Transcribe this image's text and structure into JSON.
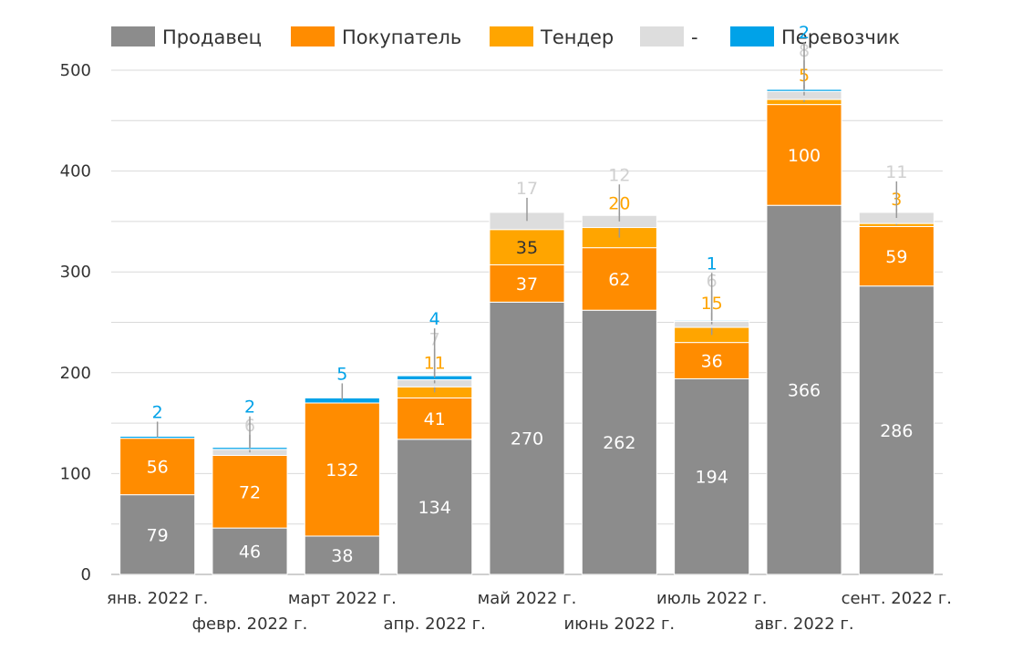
{
  "chart_data": {
    "type": "bar",
    "stacked": true,
    "categories": [
      "янв. 2022 г.",
      "февр. 2022 г.",
      "март 2022 г.",
      "апр. 2022 г.",
      "май 2022 г.",
      "июнь 2022 г.",
      "июль 2022 г.",
      "авг. 2022 г.",
      "сент. 2022 г."
    ],
    "series": [
      {
        "name": "Продавец",
        "color": "#8c8c8c",
        "label_color": "#ffffff",
        "values": [
          79,
          46,
          38,
          134,
          270,
          262,
          194,
          366,
          286
        ]
      },
      {
        "name": "Покупатель",
        "color": "#ff8c00",
        "label_color": "#ffffff",
        "values": [
          56,
          72,
          132,
          41,
          37,
          62,
          36,
          100,
          59
        ]
      },
      {
        "name": "Тендер",
        "color": "#ffa500",
        "label_color": "#ffa500",
        "values": [
          0,
          0,
          0,
          11,
          35,
          20,
          15,
          5,
          3
        ]
      },
      {
        "name": "-",
        "color": "#dddddd",
        "label_color": "#d0d0d0",
        "values": [
          0,
          6,
          0,
          7,
          17,
          12,
          6,
          8,
          11
        ]
      },
      {
        "name": "Перевозчик",
        "color": "#00a2e8",
        "label_color": "#00a2e8",
        "values": [
          2,
          2,
          5,
          4,
          0,
          0,
          1,
          2,
          0
        ]
      }
    ],
    "yticks": [
      0,
      100,
      200,
      300,
      400,
      500
    ],
    "ylim": [
      0,
      500
    ],
    "grid": true,
    "legend": "top"
  }
}
